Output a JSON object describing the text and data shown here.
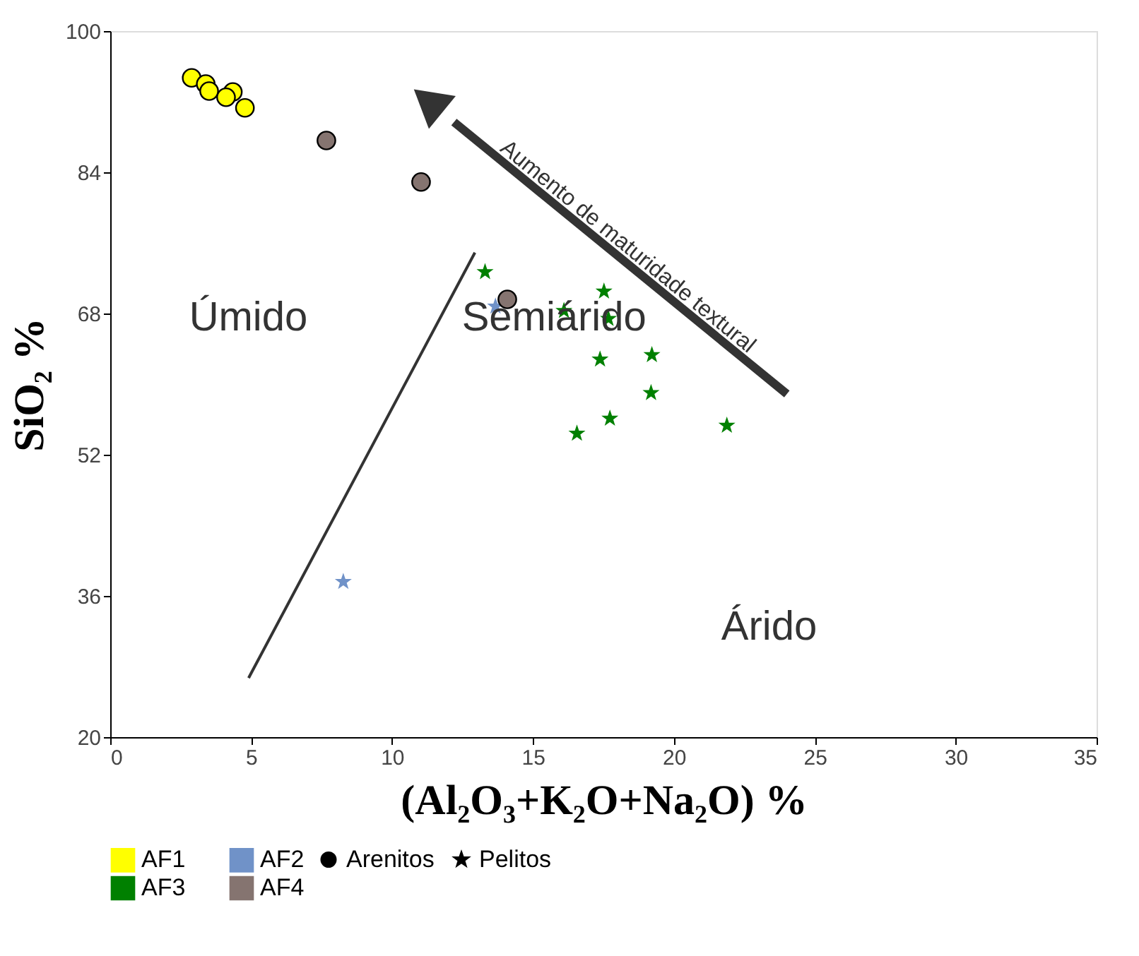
{
  "chart_data": {
    "type": "scatter",
    "xlabel": "(Al₂O₃+K₂O+Na₂O) %",
    "ylabel": "SiO₂ %",
    "xlim": [
      0,
      35
    ],
    "xticks": [
      0,
      5,
      10,
      15,
      20,
      25,
      30,
      35
    ],
    "ylim": [
      20,
      100
    ],
    "yticks": [
      20,
      36,
      52,
      68,
      84,
      100
    ],
    "grid": false,
    "legend": "bottom",
    "series": [
      {
        "name": "AF1",
        "color": "#ffff00",
        "marker": "circle",
        "x": [
          2.89,
          3.39,
          3.51,
          4.35,
          4.11,
          4.78
        ],
        "values": [
          94.7,
          94.0,
          93.2,
          93.1,
          92.5,
          91.3
        ]
      },
      {
        "name": "AF2",
        "color": "#7092c8",
        "marker": "star",
        "x": [
          13.67,
          8.27
        ],
        "values": [
          68.8,
          37.6
        ]
      },
      {
        "name": "AF3",
        "color": "#008000",
        "marker": "star",
        "x": [
          13.3,
          17.52,
          16.1,
          17.68,
          17.38,
          19.22,
          19.19,
          17.73,
          16.56,
          21.88
        ],
        "values": [
          72.7,
          70.5,
          68.3,
          67.4,
          62.8,
          63.3,
          59.0,
          56.1,
          54.4,
          55.3
        ]
      },
      {
        "name": "AF4",
        "color": "#857470",
        "marker": "circle",
        "x": [
          7.67,
          11.03,
          14.09
        ],
        "values": [
          87.6,
          82.9,
          69.6
        ]
      },
      {
        "type": "line",
        "color": "#333333",
        "x": [
          4.91,
          12.94
        ],
        "values": [
          26.7,
          74.9
        ]
      }
    ],
    "annotations": [
      "Arenitos",
      "Pelitos",
      "Úmido",
      "Semiárido",
      "Árido",
      "Aumento de maturidade textural"
    ]
  }
}
